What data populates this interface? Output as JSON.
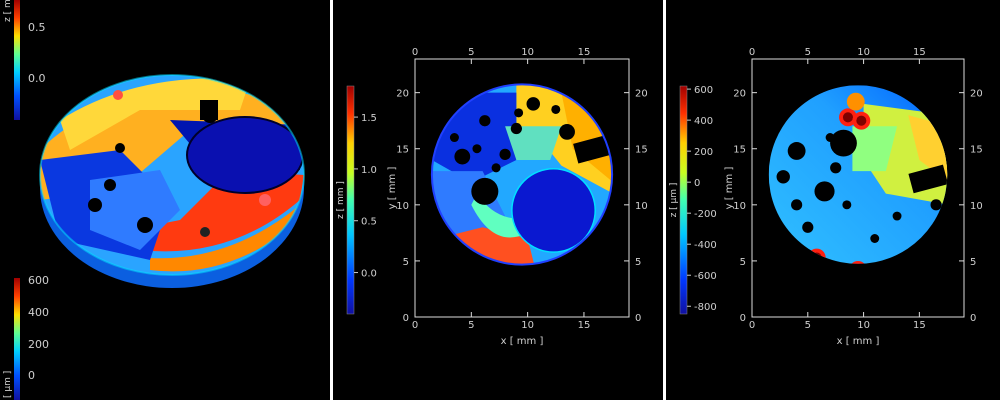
{
  "chart_data": [
    {
      "type": "3d-surface",
      "colorbars": [
        {
          "label": "z [ mm ]",
          "ticks": [
            "0.5",
            "0.0"
          ]
        },
        {
          "label": "[ µm ]",
          "ticks": [
            "600",
            "400",
            "200",
            "0"
          ]
        }
      ]
    },
    {
      "type": "heatmap",
      "xlabel": "x [ mm ]",
      "ylabel": "y [ mm ]",
      "xticks": [
        0,
        5,
        10,
        15
      ],
      "yticks": [
        0,
        5,
        10,
        15,
        20
      ],
      "xlim": [
        0,
        19
      ],
      "ylim": [
        0,
        23
      ],
      "colorbar": {
        "label": "z [ mm ]",
        "ticks": [
          "1.5",
          "1.0",
          "0.5",
          "0.0"
        ],
        "range": [
          -0.4,
          1.8
        ]
      }
    },
    {
      "type": "heatmap",
      "xlabel": "x [ mm ]",
      "ylabel": "y [ mm ]",
      "xticks": [
        0,
        5,
        10,
        15
      ],
      "yticks": [
        0,
        5,
        10,
        15,
        20
      ],
      "xlim": [
        0,
        19
      ],
      "ylim": [
        0,
        23
      ],
      "colorbar": {
        "label": "z [ µm ]",
        "ticks": [
          "600",
          "400",
          "200",
          "0",
          "-200",
          "-400",
          "-600",
          "-800"
        ],
        "range": [
          -850,
          620
        ]
      }
    }
  ]
}
